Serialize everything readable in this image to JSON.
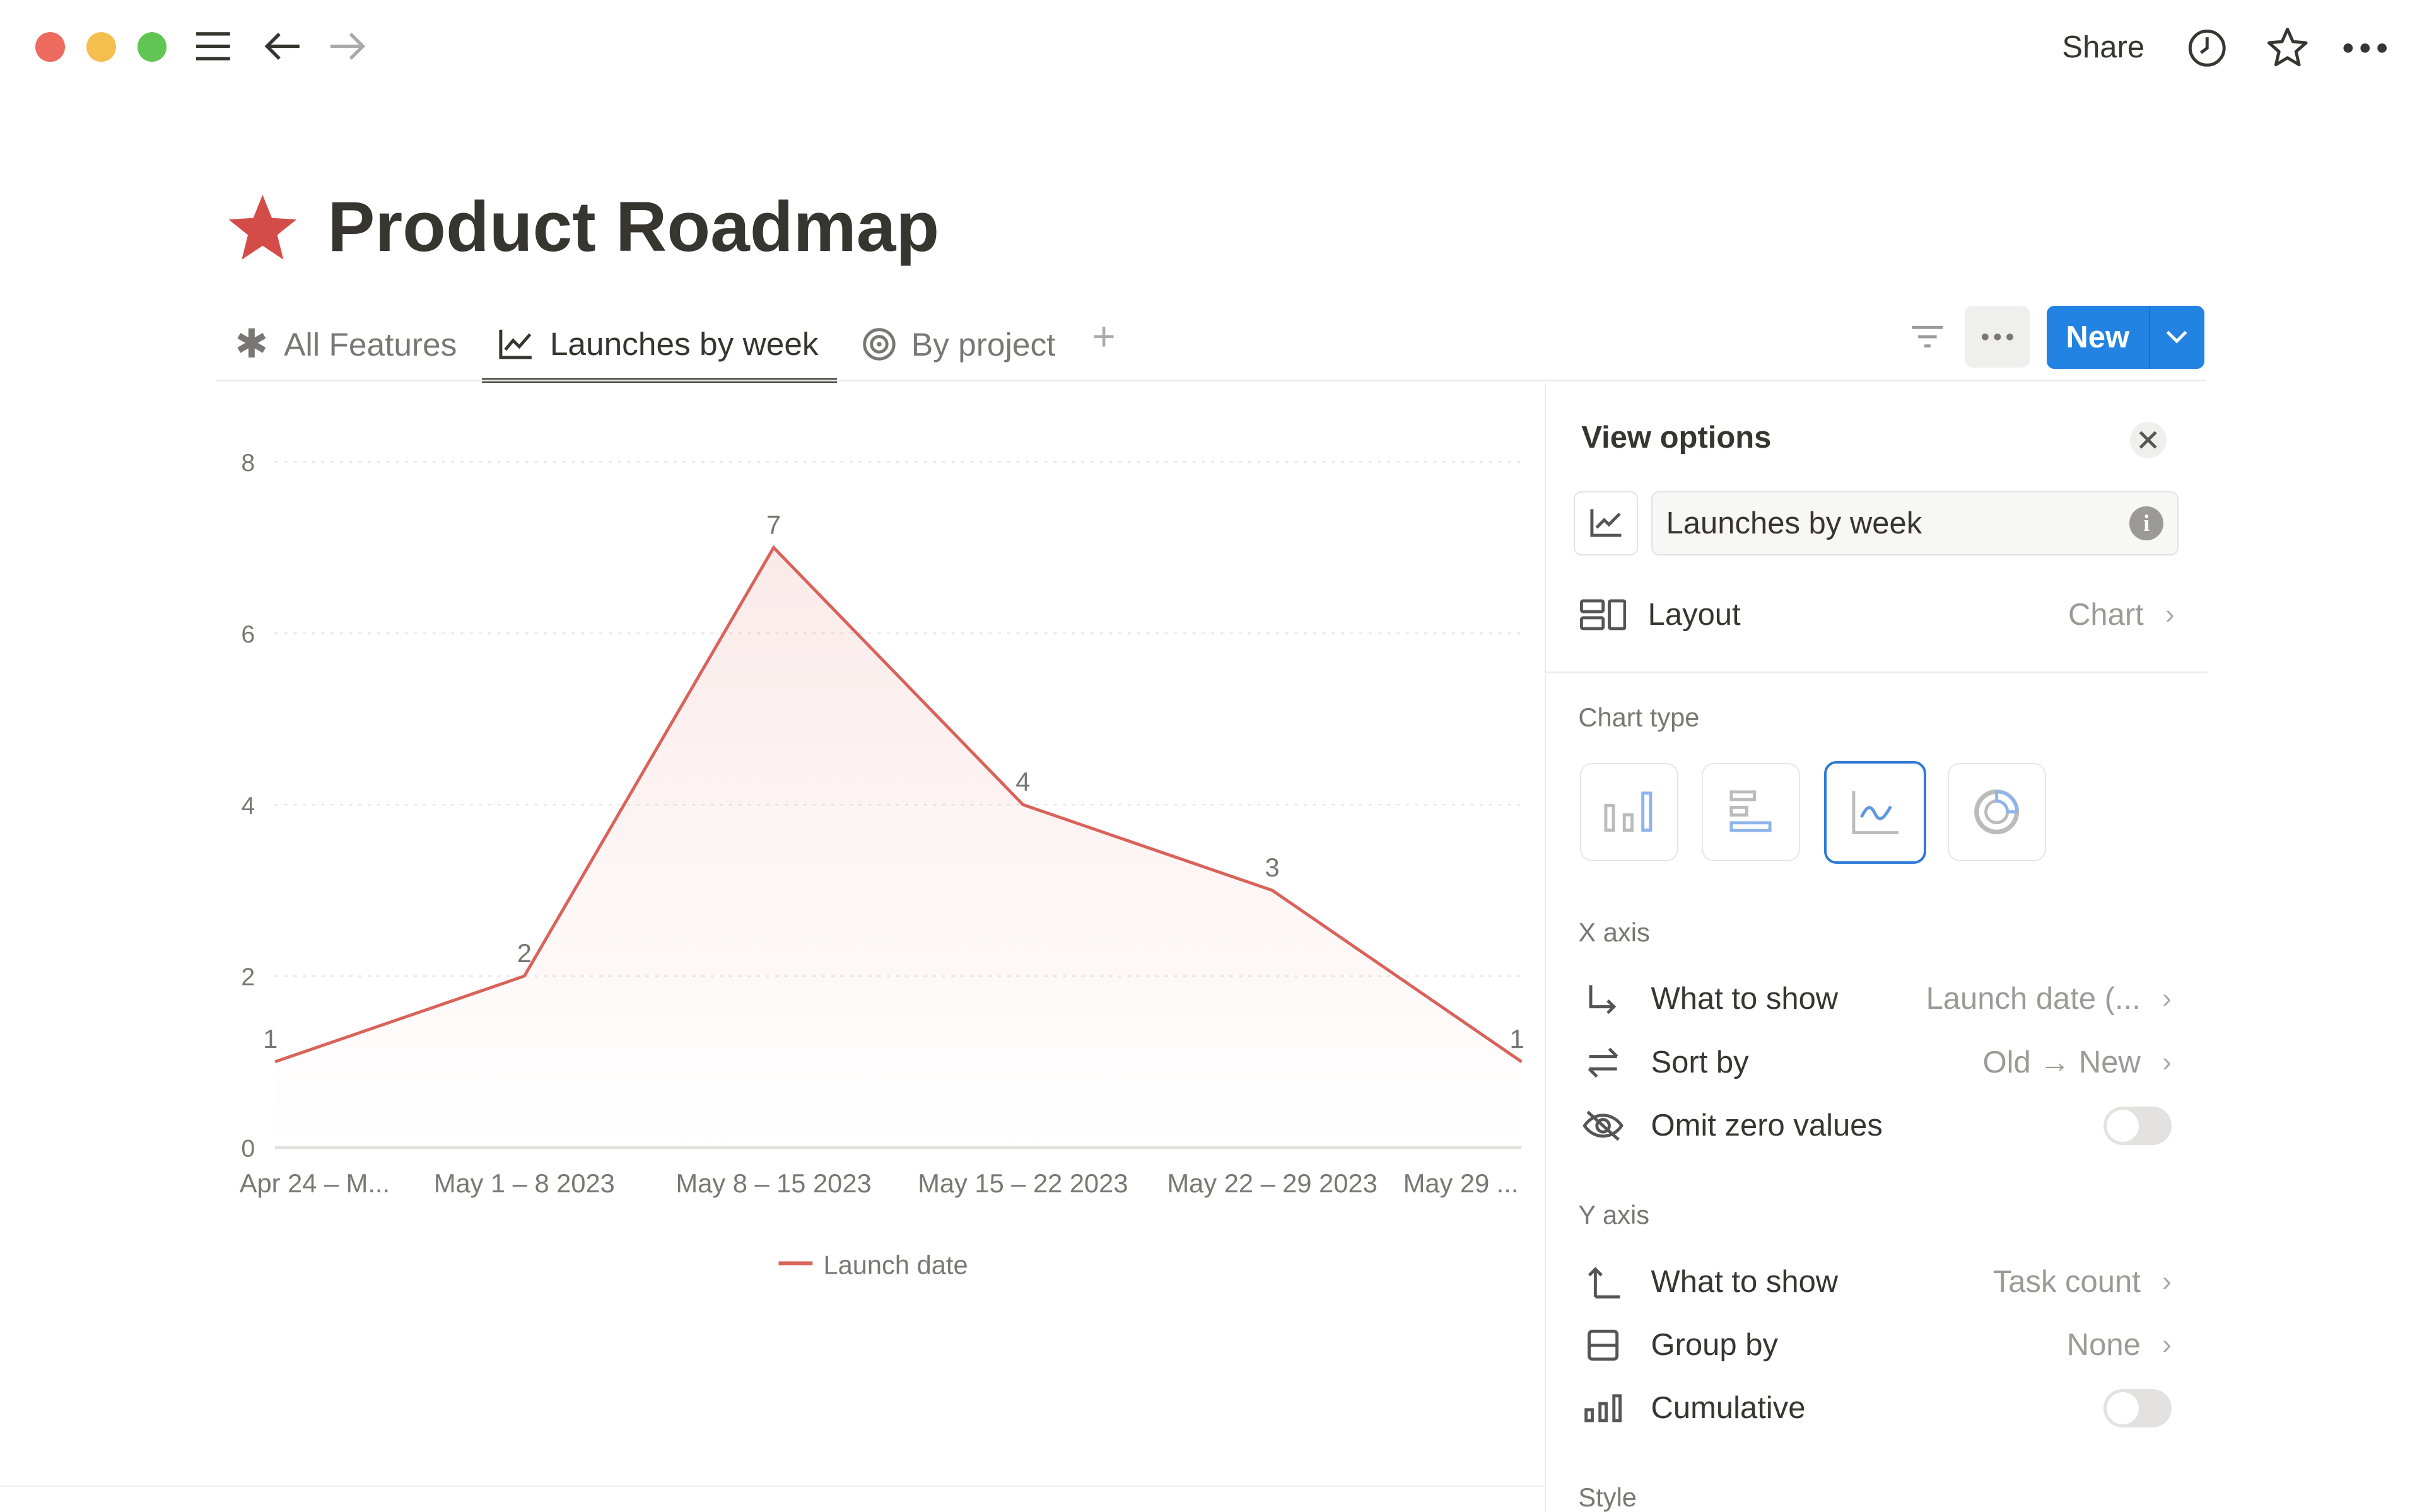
{
  "window": {
    "share_label": "Share"
  },
  "page": {
    "title": "Product Roadmap",
    "icon": "star-icon",
    "icon_color": "#d44c47"
  },
  "tabs": [
    {
      "label": "All Features",
      "icon": "asterisk-icon"
    },
    {
      "label": "Launches by week",
      "icon": "line-chart-icon",
      "active": true
    },
    {
      "label": "By project",
      "icon": "target-icon"
    }
  ],
  "toolbar": {
    "new_label": "New",
    "accent": "#2383e2"
  },
  "panel": {
    "title": "View options",
    "view_name": "Launches by week",
    "layout": {
      "label": "Layout",
      "value": "Chart"
    },
    "chart_type_label": "Chart type",
    "chart_types": [
      "vertical-bar",
      "horizontal-bar",
      "line",
      "donut"
    ],
    "selected_chart_type": "line",
    "x_axis": {
      "label": "X axis",
      "what_to_show": {
        "label": "What to show",
        "value": "Launch date (..."
      },
      "sort_by": {
        "label": "Sort by",
        "value": "Old → New"
      },
      "omit_zero": {
        "label": "Omit zero values",
        "on": false
      }
    },
    "y_axis": {
      "label": "Y axis",
      "what_to_show": {
        "label": "What to show",
        "value": "Task count"
      },
      "group_by": {
        "label": "Group by",
        "value": "None"
      },
      "cumulative": {
        "label": "Cumulative",
        "on": false
      }
    },
    "style_label": "Style"
  },
  "chart_data": {
    "type": "line",
    "categories": [
      "Apr 24 – M...",
      "May 1 – 8 2023",
      "May 8 – 15 2023",
      "May 15 – 22 2023",
      "May 22 – 29 2023",
      "May 29 ..."
    ],
    "series": [
      {
        "name": "Launch date",
        "values": [
          1,
          2,
          7,
          4,
          3,
          1
        ],
        "color": "#d9625a"
      }
    ],
    "ylim": [
      0,
      8
    ],
    "yticks": [
      0,
      2,
      4,
      6,
      8
    ],
    "grid": true,
    "legend": "bottom",
    "data_labels": true
  }
}
